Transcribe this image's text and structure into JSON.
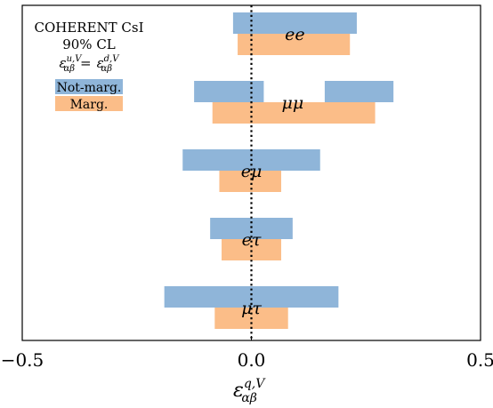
{
  "chart_data": {
    "type": "bar",
    "orientation": "horizontal-interval",
    "text": {
      "line1": "COHERENT CsI",
      "line2": "90% CL",
      "line3_lhs": "ε",
      "line3_lhs_sup": "u,V",
      "line3_lhs_sub": "αβ",
      "line3_eq": "=",
      "line3_rhs": "ε",
      "line3_rhs_sup": "d,V",
      "line3_rhs_sub": "αβ"
    },
    "xlabel": {
      "base": "ε",
      "sup": "q,V",
      "sub": "αβ"
    },
    "xlim": [
      -0.5,
      0.5
    ],
    "xticks": [
      -0.5,
      0.0,
      0.5
    ],
    "xtick_labels": [
      "−0.5",
      "0.0",
      "0.5"
    ],
    "reference_line": 0.0,
    "grid": false,
    "legend_position": "top-left",
    "series": [
      {
        "name": "Not-marg.",
        "color": "#8fb5d9"
      },
      {
        "name": "Marg.",
        "color": "#fbbd88"
      }
    ],
    "categories": [
      {
        "label": "ee",
        "label_x": 0.095,
        "not_marg": [
          [
            -0.04,
            0.23
          ]
        ],
        "marg": [
          [
            -0.03,
            0.215
          ]
        ]
      },
      {
        "label": "μμ",
        "label_x": 0.09,
        "not_marg": [
          [
            -0.125,
            0.027
          ],
          [
            0.16,
            0.31
          ]
        ],
        "marg": [
          [
            -0.085,
            0.27
          ]
        ]
      },
      {
        "label": "eμ",
        "label_x": 0.0,
        "not_marg": [
          [
            -0.15,
            0.15
          ]
        ],
        "marg": [
          [
            -0.07,
            0.065
          ]
        ]
      },
      {
        "label": "eτ",
        "label_x": 0.0,
        "not_marg": [
          [
            -0.09,
            0.09
          ]
        ],
        "marg": [
          [
            -0.065,
            0.065
          ]
        ]
      },
      {
        "label": "μτ",
        "label_x": 0.0,
        "not_marg": [
          [
            -0.19,
            0.19
          ]
        ],
        "marg": [
          [
            -0.08,
            0.08
          ]
        ]
      }
    ]
  }
}
